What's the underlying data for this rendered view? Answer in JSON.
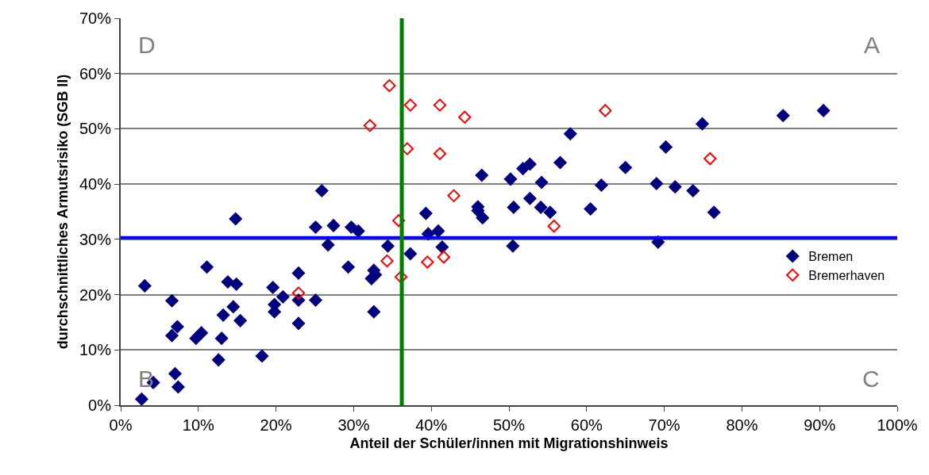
{
  "chart_data": {
    "type": "scatter",
    "xlabel": "Anteil der Schüler/innen mit Migrationshinweis",
    "ylabel": "durchschnittliches Armutsrisiko (SGB II)",
    "xlim": [
      0,
      100
    ],
    "ylim": [
      0,
      70
    ],
    "xticks": [
      {
        "value": 0,
        "label": "0%"
      },
      {
        "value": 10,
        "label": "10%"
      },
      {
        "value": 20,
        "label": "20%"
      },
      {
        "value": 30,
        "label": "30%"
      },
      {
        "value": 40,
        "label": "40%"
      },
      {
        "value": 50,
        "label": "50%"
      },
      {
        "value": 60,
        "label": "60%"
      },
      {
        "value": 70,
        "label": "70%"
      },
      {
        "value": 80,
        "label": "80%"
      },
      {
        "value": 90,
        "label": "90%"
      },
      {
        "value": 100,
        "label": "100%"
      }
    ],
    "yticks": [
      {
        "value": 0,
        "label": "0%"
      },
      {
        "value": 10,
        "label": "10%"
      },
      {
        "value": 20,
        "label": "20%"
      },
      {
        "value": 30,
        "label": "30%"
      },
      {
        "value": 40,
        "label": "40%"
      },
      {
        "value": 50,
        "label": "50%"
      },
      {
        "value": 60,
        "label": "60%"
      },
      {
        "value": 70,
        "label": "70%"
      }
    ],
    "grid": "y",
    "legend": "right",
    "series": [
      {
        "name": "Bremen",
        "color": "#000080",
        "marker": "diamond",
        "x": [
          2.7,
          4.2,
          3.1,
          6.6,
          6.6,
          7.3,
          7.0,
          7.4,
          9.7,
          10.4,
          11.1,
          12.6,
          13.0,
          13.2,
          13.8,
          14.5,
          14.9,
          14.8,
          15.4,
          18.2,
          19.6,
          19.8,
          19.8,
          20.9,
          22.9,
          22.9,
          22.9,
          25.1,
          25.1,
          26.7,
          27.4,
          29.3,
          29.7,
          30.6,
          32.6,
          32.8,
          32.3,
          32.6,
          34.4,
          37.3,
          39.3,
          39.6,
          25.9,
          46.5,
          50.2,
          51.8,
          52.7,
          57.9,
          56.6,
          54.2,
          52.7,
          50.6,
          54.1,
          55.3,
          46.0,
          46.0,
          46.6,
          40.9,
          41.4,
          50.5,
          60.5,
          61.9,
          65.0,
          70.2,
          69.0,
          71.4,
          73.7,
          69.2,
          74.9,
          76.4,
          85.3,
          90.5
        ],
        "values": [
          1.1,
          4.1,
          21.6,
          18.9,
          12.6,
          14.2,
          5.7,
          3.3,
          12.1,
          13.1,
          25.0,
          8.2,
          12.1,
          16.3,
          22.3,
          17.8,
          21.9,
          33.7,
          15.3,
          8.9,
          21.3,
          18.2,
          16.9,
          19.6,
          23.9,
          19.0,
          14.8,
          19.0,
          32.2,
          29.0,
          32.5,
          25.0,
          32.2,
          31.5,
          24.4,
          23.6,
          22.9,
          16.9,
          28.8,
          27.4,
          34.7,
          31.0,
          38.8,
          41.6,
          40.9,
          42.8,
          43.6,
          49.1,
          43.9,
          40.3,
          37.4,
          35.8,
          35.8,
          34.9,
          35.9,
          35.2,
          33.9,
          31.5,
          28.6,
          28.8,
          35.5,
          39.8,
          43.0,
          46.7,
          40.1,
          39.5,
          38.8,
          29.5,
          50.9,
          34.9,
          52.4,
          53.3
        ]
      },
      {
        "name": "Bremerhaven",
        "color": "#ff0000",
        "marker": "diamond-open",
        "x": [
          22.9,
          34.3,
          35.8,
          36.1,
          39.5,
          34.6,
          32.1,
          37.3,
          36.9,
          41.1,
          44.3,
          62.4,
          41.1,
          42.9,
          55.8,
          41.6,
          75.9
        ],
        "values": [
          20.3,
          26.1,
          33.4,
          23.2,
          25.9,
          57.8,
          50.6,
          54.3,
          46.4,
          54.3,
          52.1,
          53.3,
          45.5,
          37.9,
          32.4,
          26.8,
          44.6
        ]
      }
    ],
    "ref_lines": [
      {
        "axis": "y",
        "value": 30.3,
        "color": "#0000ff"
      },
      {
        "axis": "x",
        "value": 36.2,
        "color": "#008000"
      }
    ],
    "annotations": [
      "D",
      "A",
      "B",
      "C"
    ]
  }
}
